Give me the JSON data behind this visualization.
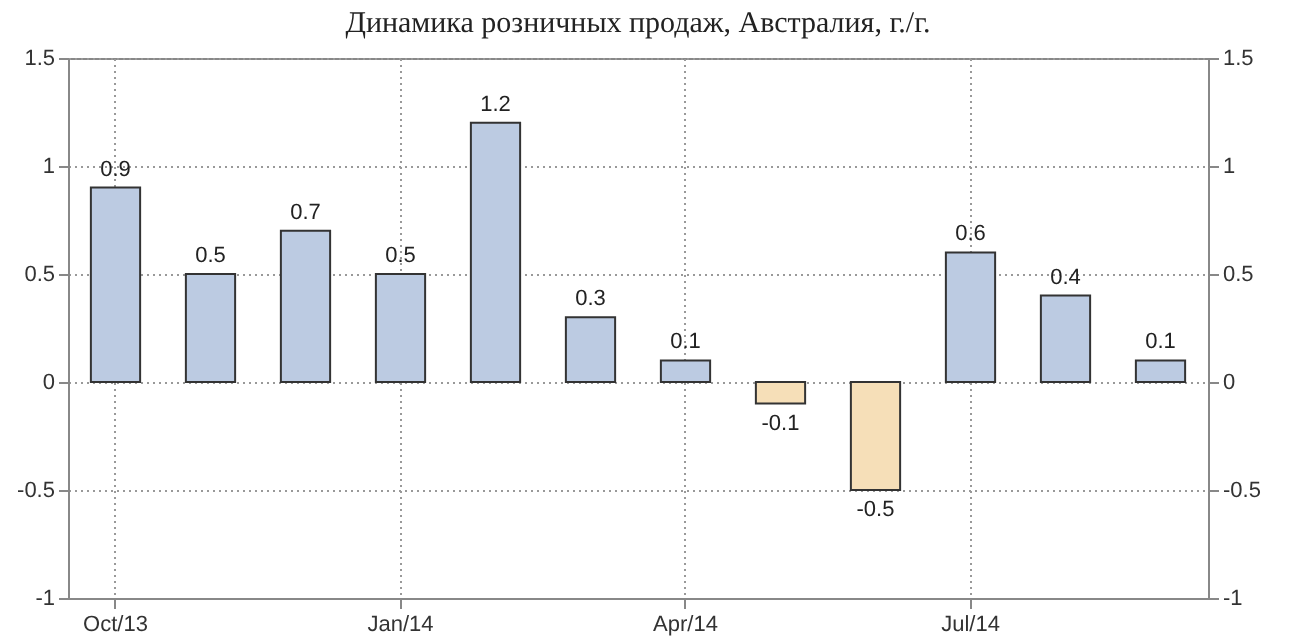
{
  "chart_data": {
    "type": "bar",
    "title": "Динамика розничных продаж, Австралия, г./г.",
    "categories": [
      "Oct/13",
      null,
      null,
      "Jan/14",
      null,
      null,
      "Apr/14",
      null,
      null,
      "Jul/14",
      null,
      null
    ],
    "values": [
      0.9,
      0.5,
      0.7,
      0.5,
      1.2,
      0.3,
      0.1,
      -0.1,
      -0.5,
      0.6,
      0.4,
      0.1
    ],
    "colors": [
      "#bccbe2",
      "#bccbe2",
      "#bccbe2",
      "#bccbe2",
      "#bccbe2",
      "#bccbe2",
      "#bccbe2",
      "#f6dfb8",
      "#f6dfb8",
      "#bccbe2",
      "#bccbe2",
      "#bccbe2"
    ],
    "ylim": [
      -1,
      1.5
    ],
    "yticks": [
      -1,
      -0.5,
      0,
      0.5,
      1,
      1.5
    ],
    "y2lim": [
      -1,
      1.5
    ],
    "y2ticks": [
      -1,
      -0.5,
      0,
      0.5,
      1,
      1.5
    ],
    "grid": true,
    "data_labels": true
  }
}
